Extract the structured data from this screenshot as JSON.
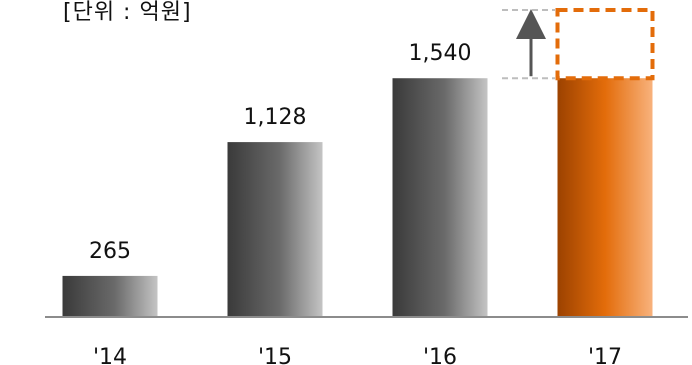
{
  "chart_data": {
    "type": "bar",
    "unit_label": "[단위 : 억원]",
    "categories": [
      "'14",
      "'15",
      "'16",
      "'17"
    ],
    "values": [
      265,
      1128,
      1540,
      1540
    ],
    "value_labels": [
      "265",
      "1,128",
      "1,540",
      ""
    ],
    "ylim": [
      0,
      1980
    ],
    "grid": false,
    "legend": "none",
    "bar_colors": [
      "#4a4a4a",
      "#4a4a4a",
      "#4a4a4a",
      "#e36c0a"
    ],
    "projected_target_bar_index": 3,
    "projected_outline_color": "#e36c0a",
    "arrow_color": "#555555"
  }
}
